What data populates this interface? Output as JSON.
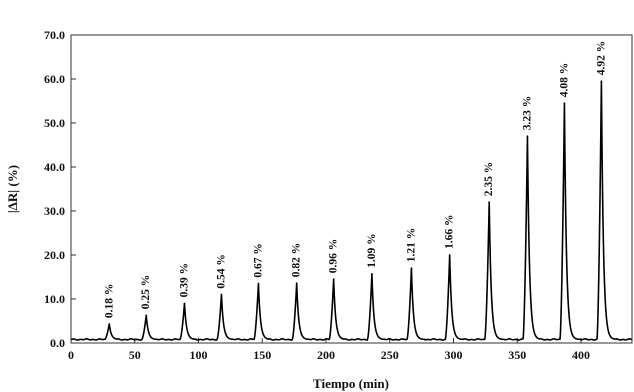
{
  "chart_data": {
    "type": "line",
    "xlabel": "Tiempo (min)",
    "ylabel": "|ΔR| (%)",
    "xlim": [
      0,
      440
    ],
    "ylim": [
      0,
      70
    ],
    "x_ticks": [
      "0",
      "50",
      "100",
      "150",
      "200",
      "250",
      "300",
      "350",
      "400"
    ],
    "y_ticks": [
      "0.0",
      "10.0",
      "20.0",
      "30.0",
      "40.0",
      "50.0",
      "60.0",
      "70.0"
    ],
    "grid": false,
    "line_color": "#000000",
    "baseline": 0.8,
    "peaks": [
      {
        "x": 30,
        "y": 4.3,
        "label": "0.18 %"
      },
      {
        "x": 59,
        "y": 6.3,
        "label": "0.25 %"
      },
      {
        "x": 89,
        "y": 9.0,
        "label": "0.39 %"
      },
      {
        "x": 118,
        "y": 11.0,
        "label": "0.54 %"
      },
      {
        "x": 147,
        "y": 13.5,
        "label": "0.67 %"
      },
      {
        "x": 177,
        "y": 13.6,
        "label": "0.82 %"
      },
      {
        "x": 206,
        "y": 14.5,
        "label": "0.96 %"
      },
      {
        "x": 236,
        "y": 15.7,
        "label": "1.09 %"
      },
      {
        "x": 267,
        "y": 17.0,
        "label": "1.21 %"
      },
      {
        "x": 297,
        "y": 20.0,
        "label": "1.66 %"
      },
      {
        "x": 328,
        "y": 32.0,
        "label": "2.35 %"
      },
      {
        "x": 358,
        "y": 47.0,
        "label": "3.23 %"
      },
      {
        "x": 387,
        "y": 54.5,
        "label": "4.08 %"
      },
      {
        "x": 416,
        "y": 59.5,
        "label": "4.92 %"
      }
    ]
  }
}
